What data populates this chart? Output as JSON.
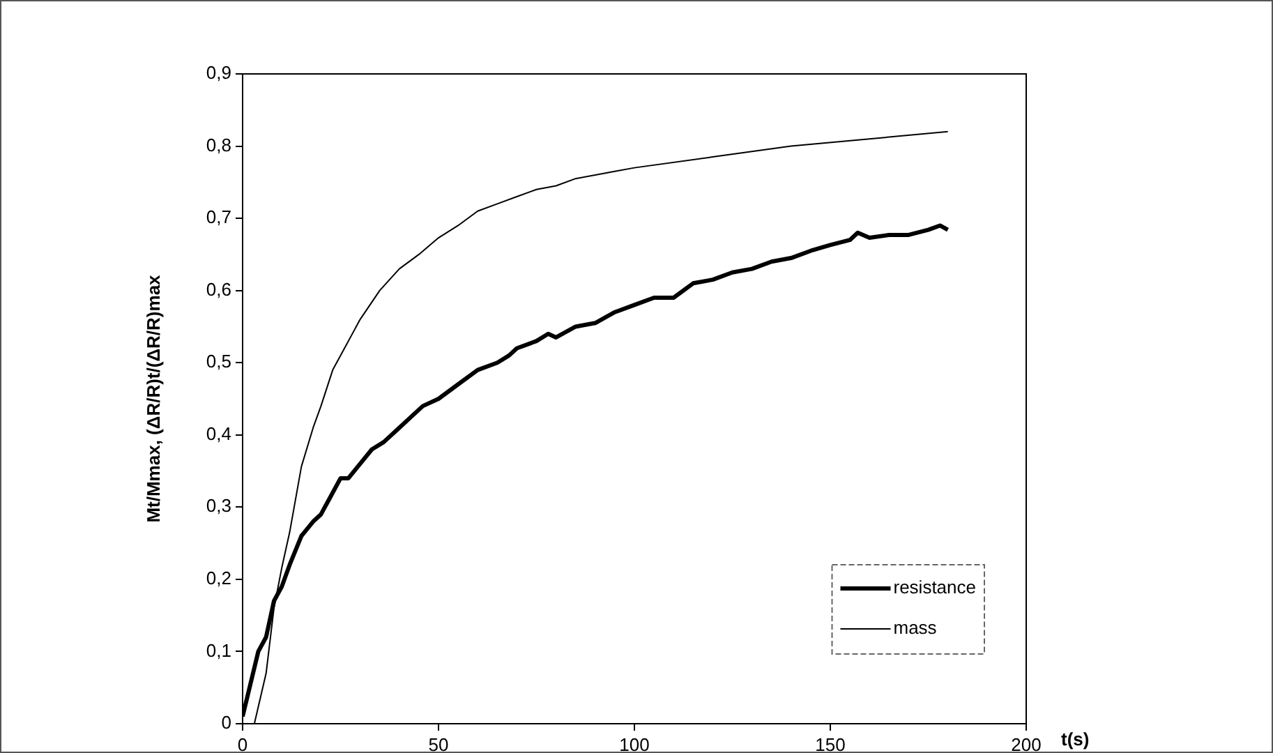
{
  "chart_data": {
    "type": "line",
    "xlabel": "t(s)",
    "ylabel": "Mt/Mmax, (ΔR/R)t/(ΔR/R)max",
    "xlim": [
      0,
      200
    ],
    "xticks": [
      0,
      50,
      100,
      150,
      200
    ],
    "ylim": [
      0,
      0.9
    ],
    "yticks": [
      0,
      {
        "value": 0.1,
        "label": "0,1"
      },
      {
        "value": 0.2,
        "label": "0,2"
      },
      {
        "value": 0.3,
        "label": "0,3"
      },
      {
        "value": 0.4,
        "label": "0,4"
      },
      {
        "value": 0.5,
        "label": "0,5"
      },
      {
        "value": 0.6,
        "label": "0,6"
      },
      {
        "value": 0.7,
        "label": "0,7"
      },
      {
        "value": 0.8,
        "label": "0,8"
      },
      {
        "value": 0.9,
        "label": "0,9"
      }
    ],
    "grid": false,
    "legend": "bottom right",
    "marker": "none",
    "line_style": "solid",
    "series": [
      {
        "name": "resistance",
        "color": "#000000",
        "x": [
          0,
          2,
          4,
          6,
          8,
          10,
          12,
          15,
          18,
          20,
          22,
          25,
          27,
          30,
          33,
          36,
          40,
          43,
          46,
          50,
          55,
          60,
          65,
          68,
          70,
          75,
          78,
          80,
          85,
          90,
          95,
          100,
          105,
          110,
          115,
          120,
          125,
          130,
          135,
          140,
          145,
          150,
          155,
          157,
          160,
          165,
          170,
          175,
          178,
          180
        ],
        "values": [
          0.01,
          0.055,
          0.1,
          0.12,
          0.17,
          0.19,
          0.22,
          0.26,
          0.28,
          0.29,
          0.31,
          0.34,
          0.34,
          0.36,
          0.38,
          0.39,
          0.41,
          0.425,
          0.44,
          0.45,
          0.47,
          0.49,
          0.5,
          0.51,
          0.52,
          0.53,
          0.54,
          0.535,
          0.55,
          0.555,
          0.57,
          0.58,
          0.59,
          0.59,
          0.61,
          0.615,
          0.625,
          0.63,
          0.64,
          0.645,
          0.655,
          0.663,
          0.67,
          0.68,
          0.673,
          0.677,
          0.677,
          0.684,
          0.69,
          0.684
        ]
      },
      {
        "name": "mass",
        "color": "#000000",
        "x": [
          0,
          3,
          6,
          8,
          10,
          12,
          15,
          18,
          20,
          23,
          26,
          30,
          35,
          40,
          45,
          50,
          55,
          60,
          65,
          70,
          75,
          80,
          85,
          90,
          95,
          100,
          120,
          140,
          160,
          180
        ],
        "values": [
          0,
          0,
          0.07,
          0.16,
          0.216,
          0.265,
          0.356,
          0.41,
          0.44,
          0.49,
          0.52,
          0.56,
          0.6,
          0.63,
          0.65,
          0.673,
          0.69,
          0.71,
          0.72,
          0.73,
          0.74,
          0.745,
          0.755,
          0.76,
          0.765,
          0.77,
          0.785,
          0.8,
          0.81,
          0.82
        ]
      }
    ]
  }
}
